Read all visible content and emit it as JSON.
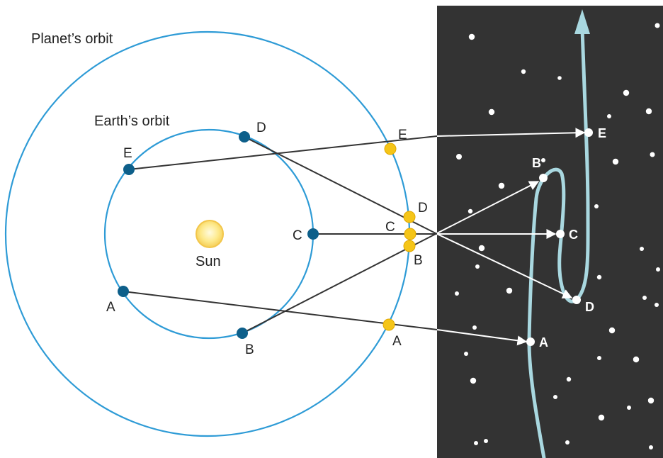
{
  "labels": {
    "planets_orbit": "Planet’s orbit",
    "earths_orbit": "Earth’s orbit",
    "sun": "Sun"
  },
  "earth_positions": [
    "A",
    "B",
    "C",
    "D",
    "E"
  ],
  "planet_positions": [
    "A",
    "B",
    "C",
    "D",
    "E"
  ],
  "sky_positions": [
    "A",
    "B",
    "C",
    "D",
    "E"
  ],
  "colors": {
    "orbit": "#2e9bd6",
    "earth_dot": "#0d5f8a",
    "planet_dot": "#f5c518",
    "sun_fill": "#fde98a",
    "sun_stroke": "#f2c64a",
    "sight_line": "#333333",
    "sky_background": "#333333",
    "star": "#ffffff",
    "path": "#a9d8e0"
  }
}
